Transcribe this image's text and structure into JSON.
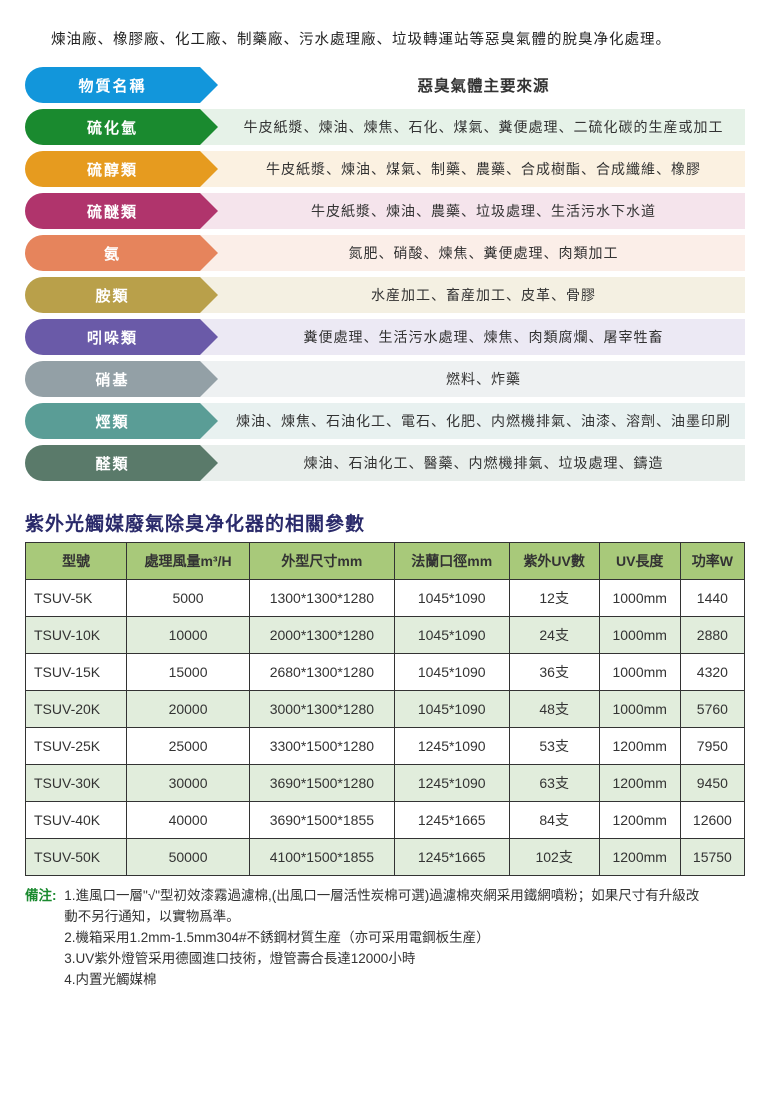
{
  "intro": "煉油廠、橡膠廠、化工廠、制藥廠、污水處理廠、垃圾轉運站等惡臭氣體的脫臭净化處理。",
  "header_row": {
    "label": "物質名稱",
    "label_bg": "#1296db",
    "desc": "惡臭氣體主要來源",
    "desc_bg": "#ffffff",
    "desc_bold": true
  },
  "odor_rows": [
    {
      "label": "硫化氫",
      "label_bg": "#1a8a2f",
      "desc_bg": "#e6f2e8",
      "desc": "牛皮紙漿、煉油、煉焦、石化、煤氣、糞便處理、二硫化碳的生産或加工"
    },
    {
      "label": "硫醇類",
      "label_bg": "#e69b1f",
      "desc_bg": "#fbf1e1",
      "desc": "牛皮紙漿、煉油、煤氣、制藥、農藥、合成樹酯、合成纖維、橡膠"
    },
    {
      "label": "硫醚類",
      "label_bg": "#b0346c",
      "desc_bg": "#f5e4ec",
      "desc": "牛皮紙漿、煉油、農藥、垃圾處理、生活污水下水道"
    },
    {
      "label": "氨",
      "label_bg": "#e6845c",
      "desc_bg": "#fbeee8",
      "desc": "氮肥、硝酸、煉焦、糞便處理、肉類加工"
    },
    {
      "label": "胺類",
      "label_bg": "#b9a04a",
      "desc_bg": "#f4f0e2",
      "desc": "水産加工、畜産加工、皮革、骨膠"
    },
    {
      "label": "吲哚類",
      "label_bg": "#6a5aa8",
      "desc_bg": "#ece9f4",
      "desc": "糞便處理、生活污水處理、煉焦、肉類腐爛、屠宰牲畜"
    },
    {
      "label": "硝基",
      "label_bg": "#93a0a6",
      "desc_bg": "#eef1f2",
      "desc": "燃料、炸藥"
    },
    {
      "label": "烴類",
      "label_bg": "#5a9d96",
      "desc_bg": "#e8f1f0",
      "desc": "煉油、煉焦、石油化工、電石、化肥、内燃機排氣、油漆、溶劑、油墨印刷"
    },
    {
      "label": "醛類",
      "label_bg": "#5a7a6a",
      "desc_bg": "#e8eeeb",
      "desc": "煉油、石油化工、醫藥、内燃機排氣、垃圾處理、鑄造"
    }
  ],
  "spec_title": "紫外光觸媒廢氣除臭净化器的相關參數",
  "spec_header_bg": "#a8c97a",
  "spec_alt_bg": "#e1eddc",
  "spec_columns": [
    "型號",
    "處理風量m³/H",
    "外型尺寸mm",
    "法蘭口徑mm",
    "紫外UV數",
    "UV長度",
    "功率W"
  ],
  "spec_rows": [
    [
      "TSUV-5K",
      "5000",
      "1300*1300*1280",
      "1045*1090",
      "12支",
      "1000mm",
      "1440"
    ],
    [
      "TSUV-10K",
      "10000",
      "2000*1300*1280",
      "1045*1090",
      "24支",
      "1000mm",
      "2880"
    ],
    [
      "TSUV-15K",
      "15000",
      "2680*1300*1280",
      "1045*1090",
      "36支",
      "1000mm",
      "4320"
    ],
    [
      "TSUV-20K",
      "20000",
      "3000*1300*1280",
      "1045*1090",
      "48支",
      "1000mm",
      "5760"
    ],
    [
      "TSUV-25K",
      "25000",
      "3300*1500*1280",
      "1245*1090",
      "53支",
      "1200mm",
      "7950"
    ],
    [
      "TSUV-30K",
      "30000",
      "3690*1500*1280",
      "1245*1090",
      "63支",
      "1200mm",
      "9450"
    ],
    [
      "TSUV-40K",
      "40000",
      "3690*1500*1855",
      "1245*1665",
      "84支",
      "1200mm",
      "12600"
    ],
    [
      "TSUV-50K",
      "50000",
      "4100*1500*1855",
      "1245*1665",
      "102支",
      "1200mm",
      "15750"
    ]
  ],
  "notes_label": "備注:",
  "notes": [
    "1.進風口一層\"√\"型初效漆霧過濾棉,(出風口一層活性炭棉可選)過濾棉夾網采用鐵網噴粉；如果尺寸有升級改動不另行通知，以實物爲準。",
    "2.機箱采用1.2mm-1.5mm304#不銹鋼材質生産（亦可采用電鋼板生産）",
    "3.UV紫外燈管采用德國進口技術，燈管壽合長達12000小時",
    "4.内置光觸媒棉"
  ]
}
